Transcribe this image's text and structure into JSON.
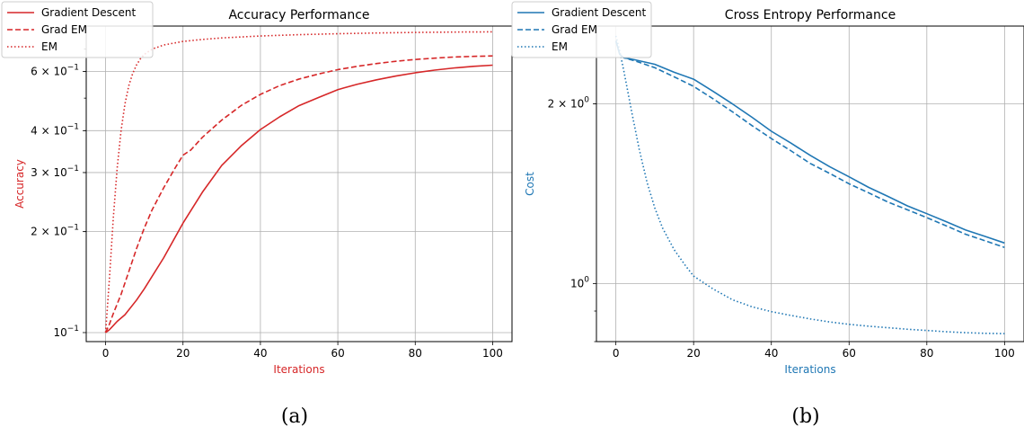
{
  "chart_data": [
    {
      "type": "line",
      "title": "Accuracy Performance",
      "xlabel": "Iterations",
      "ylabel": "Accuracy",
      "label_color": "#d62728",
      "caption": "(a)",
      "xlim": [
        -5,
        105
      ],
      "ylim": [
        0.094,
        0.82
      ],
      "yscale": "log",
      "grid": true,
      "legend_position": "top-left",
      "x_ticks": [
        0,
        20,
        40,
        60,
        80,
        100
      ],
      "x_tick_labels": [
        "0",
        "20",
        "40",
        "60",
        "80",
        "100"
      ],
      "y_ticks": [
        0.1,
        0.2,
        0.3,
        0.4,
        0.6
      ],
      "y_tick_labels": [
        "10^-1",
        "2×10^-1",
        "3×10^-1",
        "4×10^-1",
        "6×10^-1"
      ],
      "series": [
        {
          "name": "Gradient Descent",
          "color": "#d62728",
          "style": "solid",
          "points": [
            [
              0,
              0.1
            ],
            [
              1,
              0.102
            ],
            [
              3,
              0.108
            ],
            [
              5,
              0.113
            ],
            [
              8,
              0.125
            ],
            [
              10,
              0.135
            ],
            [
              15,
              0.167
            ],
            [
              20,
              0.212
            ],
            [
              25,
              0.262
            ],
            [
              30,
              0.315
            ],
            [
              35,
              0.36
            ],
            [
              40,
              0.403
            ],
            [
              45,
              0.44
            ],
            [
              50,
              0.475
            ],
            [
              55,
              0.502
            ],
            [
              60,
              0.53
            ],
            [
              65,
              0.55
            ],
            [
              70,
              0.567
            ],
            [
              75,
              0.582
            ],
            [
              80,
              0.595
            ],
            [
              85,
              0.606
            ],
            [
              90,
              0.615
            ],
            [
              95,
              0.622
            ],
            [
              100,
              0.627
            ]
          ]
        },
        {
          "name": "Grad EM",
          "color": "#d62728",
          "style": "dashed",
          "points": [
            [
              0,
              0.1
            ],
            [
              1,
              0.106
            ],
            [
              2,
              0.114
            ],
            [
              4,
              0.13
            ],
            [
              6,
              0.152
            ],
            [
              8,
              0.178
            ],
            [
              10,
              0.205
            ],
            [
              12,
              0.232
            ],
            [
              15,
              0.27
            ],
            [
              18,
              0.31
            ],
            [
              20,
              0.338
            ],
            [
              22,
              0.35
            ],
            [
              25,
              0.382
            ],
            [
              30,
              0.43
            ],
            [
              35,
              0.475
            ],
            [
              40,
              0.513
            ],
            [
              45,
              0.545
            ],
            [
              50,
              0.57
            ],
            [
              55,
              0.59
            ],
            [
              60,
              0.608
            ],
            [
              65,
              0.622
            ],
            [
              70,
              0.634
            ],
            [
              75,
              0.644
            ],
            [
              80,
              0.652
            ],
            [
              85,
              0.658
            ],
            [
              90,
              0.663
            ],
            [
              95,
              0.666
            ],
            [
              100,
              0.668
            ]
          ]
        },
        {
          "name": "EM",
          "color": "#d62728",
          "style": "dotted",
          "points": [
            [
              0,
              0.1
            ],
            [
              1,
              0.145
            ],
            [
              2,
              0.22
            ],
            [
              3,
              0.31
            ],
            [
              4,
              0.4
            ],
            [
              5,
              0.48
            ],
            [
              6,
              0.545
            ],
            [
              7,
              0.592
            ],
            [
              8,
              0.628
            ],
            [
              9,
              0.655
            ],
            [
              10,
              0.675
            ],
            [
              12,
              0.7
            ],
            [
              15,
              0.72
            ],
            [
              20,
              0.738
            ],
            [
              25,
              0.748
            ],
            [
              30,
              0.756
            ],
            [
              40,
              0.766
            ],
            [
              50,
              0.773
            ],
            [
              60,
              0.778
            ],
            [
              70,
              0.782
            ],
            [
              80,
              0.785
            ],
            [
              90,
              0.787
            ],
            [
              100,
              0.788
            ]
          ]
        }
      ]
    },
    {
      "type": "line",
      "title": "Cross Entropy Performance",
      "xlabel": "Iterations",
      "ylabel": "Cost",
      "label_color": "#1f77b4",
      "caption": "(b)",
      "xlim": [
        -5,
        105
      ],
      "ylim": [
        0.8,
        2.7
      ],
      "yscale": "log",
      "grid": true,
      "legend_position": "top-left",
      "x_ticks": [
        0,
        20,
        40,
        60,
        80,
        100
      ],
      "x_tick_labels": [
        "0",
        "20",
        "40",
        "60",
        "80",
        "100"
      ],
      "y_ticks": [
        1,
        2
      ],
      "y_tick_labels": [
        "10^0",
        "2×10^0"
      ],
      "series": [
        {
          "name": "Gradient Descent",
          "color": "#1f77b4",
          "style": "solid",
          "points": [
            [
              0,
              2.55
            ],
            [
              1,
              2.42
            ],
            [
              2,
              2.39
            ],
            [
              5,
              2.37
            ],
            [
              10,
              2.33
            ],
            [
              15,
              2.26
            ],
            [
              20,
              2.2
            ],
            [
              25,
              2.1
            ],
            [
              30,
              2.0
            ],
            [
              35,
              1.9
            ],
            [
              40,
              1.8
            ],
            [
              45,
              1.72
            ],
            [
              50,
              1.64
            ],
            [
              55,
              1.57
            ],
            [
              60,
              1.51
            ],
            [
              65,
              1.45
            ],
            [
              70,
              1.4
            ],
            [
              75,
              1.35
            ],
            [
              80,
              1.31
            ],
            [
              85,
              1.27
            ],
            [
              90,
              1.23
            ],
            [
              95,
              1.2
            ],
            [
              100,
              1.17
            ]
          ]
        },
        {
          "name": "Grad EM",
          "color": "#1f77b4",
          "style": "dashed",
          "points": [
            [
              0,
              2.55
            ],
            [
              1,
              2.42
            ],
            [
              2,
              2.39
            ],
            [
              5,
              2.36
            ],
            [
              10,
              2.3
            ],
            [
              15,
              2.22
            ],
            [
              20,
              2.14
            ],
            [
              25,
              2.04
            ],
            [
              30,
              1.94
            ],
            [
              35,
              1.84
            ],
            [
              40,
              1.75
            ],
            [
              45,
              1.67
            ],
            [
              50,
              1.59
            ],
            [
              55,
              1.53
            ],
            [
              60,
              1.47
            ],
            [
              65,
              1.42
            ],
            [
              70,
              1.37
            ],
            [
              75,
              1.33
            ],
            [
              80,
              1.29
            ],
            [
              85,
              1.25
            ],
            [
              90,
              1.21
            ],
            [
              95,
              1.18
            ],
            [
              100,
              1.15
            ]
          ]
        },
        {
          "name": "EM",
          "color": "#1f77b4",
          "style": "dotted",
          "points": [
            [
              0,
              2.6
            ],
            [
              1,
              2.45
            ],
            [
              2,
              2.28
            ],
            [
              4,
              1.95
            ],
            [
              6,
              1.68
            ],
            [
              8,
              1.48
            ],
            [
              10,
              1.34
            ],
            [
              12,
              1.24
            ],
            [
              15,
              1.14
            ],
            [
              18,
              1.07
            ],
            [
              20,
              1.03
            ],
            [
              25,
              0.98
            ],
            [
              30,
              0.94
            ],
            [
              35,
              0.915
            ],
            [
              40,
              0.898
            ],
            [
              45,
              0.885
            ],
            [
              50,
              0.873
            ],
            [
              55,
              0.863
            ],
            [
              60,
              0.855
            ],
            [
              65,
              0.849
            ],
            [
              70,
              0.844
            ],
            [
              75,
              0.839
            ],
            [
              80,
              0.835
            ],
            [
              85,
              0.831
            ],
            [
              90,
              0.828
            ],
            [
              95,
              0.826
            ],
            [
              100,
              0.825
            ]
          ]
        }
      ]
    }
  ]
}
